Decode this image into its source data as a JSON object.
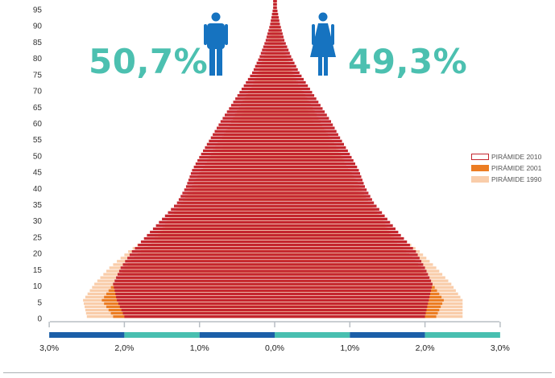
{
  "colors": {
    "p2010": "#c4262e",
    "p2001": "#ec7d23",
    "p1990": "#f9cdaa",
    "percent": "#4cc0b0",
    "icon": "#1673c0",
    "bar_blue": "#1b5fa8",
    "bar_teal": "#48bfb0"
  },
  "labels": {
    "male_percent": "50,7%",
    "female_percent": "49,3%"
  },
  "icons": {
    "male": "male-person-icon",
    "female": "female-person-icon"
  },
  "legend": [
    {
      "label": "PIRÁMIDE 2010",
      "style": "outline",
      "color_key": "p2010"
    },
    {
      "label": "PIRÁMIDE 2001",
      "style": "fill",
      "color_key": "p2001"
    },
    {
      "label": "PIRÁMIDE 1990",
      "style": "fill",
      "color_key": "p1990"
    }
  ],
  "chart_data": {
    "type": "bar",
    "orientation": "horizontal",
    "title": "",
    "xlabel": "",
    "ylabel": "",
    "y_ticks": [
      "0",
      "5",
      "10",
      "15",
      "20",
      "25",
      "30",
      "35",
      "40",
      "45",
      "50",
      "55",
      "60",
      "65",
      "70",
      "75",
      "80",
      "85",
      "90",
      "95"
    ],
    "x_ticks": [
      "3,0%",
      "2,0%",
      "1,0%",
      "0,0%",
      "1,0%",
      "2,0%",
      "3,0%"
    ],
    "xlim": [
      -3,
      3
    ],
    "ylim": [
      0,
      95
    ],
    "ages": [
      0,
      5,
      10,
      15,
      20,
      25,
      30,
      35,
      40,
      45,
      50,
      55,
      60,
      65,
      70,
      75,
      80,
      85,
      90,
      95
    ],
    "legend_position": "right",
    "series": [
      {
        "name": "PIRÁMIDE 2010",
        "male": [
          2.0,
          2.1,
          2.15,
          2.05,
          1.9,
          1.7,
          1.5,
          1.3,
          1.18,
          1.1,
          0.98,
          0.85,
          0.72,
          0.58,
          0.44,
          0.3,
          0.2,
          0.12,
          0.06,
          0.02
        ],
        "female": [
          2.0,
          2.05,
          2.1,
          2.0,
          1.88,
          1.68,
          1.5,
          1.32,
          1.2,
          1.12,
          1.0,
          0.87,
          0.75,
          0.61,
          0.47,
          0.33,
          0.22,
          0.13,
          0.07,
          0.03
        ]
      },
      {
        "name": "PIRÁMIDE 2001",
        "male": [
          2.15,
          2.3,
          2.15,
          2.0,
          1.78,
          1.55,
          1.4,
          1.25,
          1.1,
          0.98,
          0.85,
          0.7,
          0.58,
          0.45,
          0.33,
          0.22,
          0.14,
          0.08,
          0.04,
          0.01
        ],
        "female": [
          2.15,
          2.25,
          2.1,
          1.95,
          1.75,
          1.55,
          1.42,
          1.27,
          1.13,
          1.0,
          0.88,
          0.73,
          0.61,
          0.48,
          0.36,
          0.24,
          0.16,
          0.09,
          0.05,
          0.02
        ]
      },
      {
        "name": "PIRÁMIDE 1990",
        "male": [
          2.5,
          2.55,
          2.4,
          2.2,
          1.95,
          1.65,
          1.4,
          1.2,
          1.02,
          0.88,
          0.74,
          0.6,
          0.48,
          0.37,
          0.26,
          0.17,
          0.1,
          0.05,
          0.02,
          0.01
        ],
        "female": [
          2.5,
          2.5,
          2.35,
          2.15,
          1.93,
          1.65,
          1.42,
          1.22,
          1.05,
          0.91,
          0.77,
          0.63,
          0.51,
          0.4,
          0.29,
          0.19,
          0.12,
          0.06,
          0.03,
          0.01
        ]
      }
    ]
  }
}
